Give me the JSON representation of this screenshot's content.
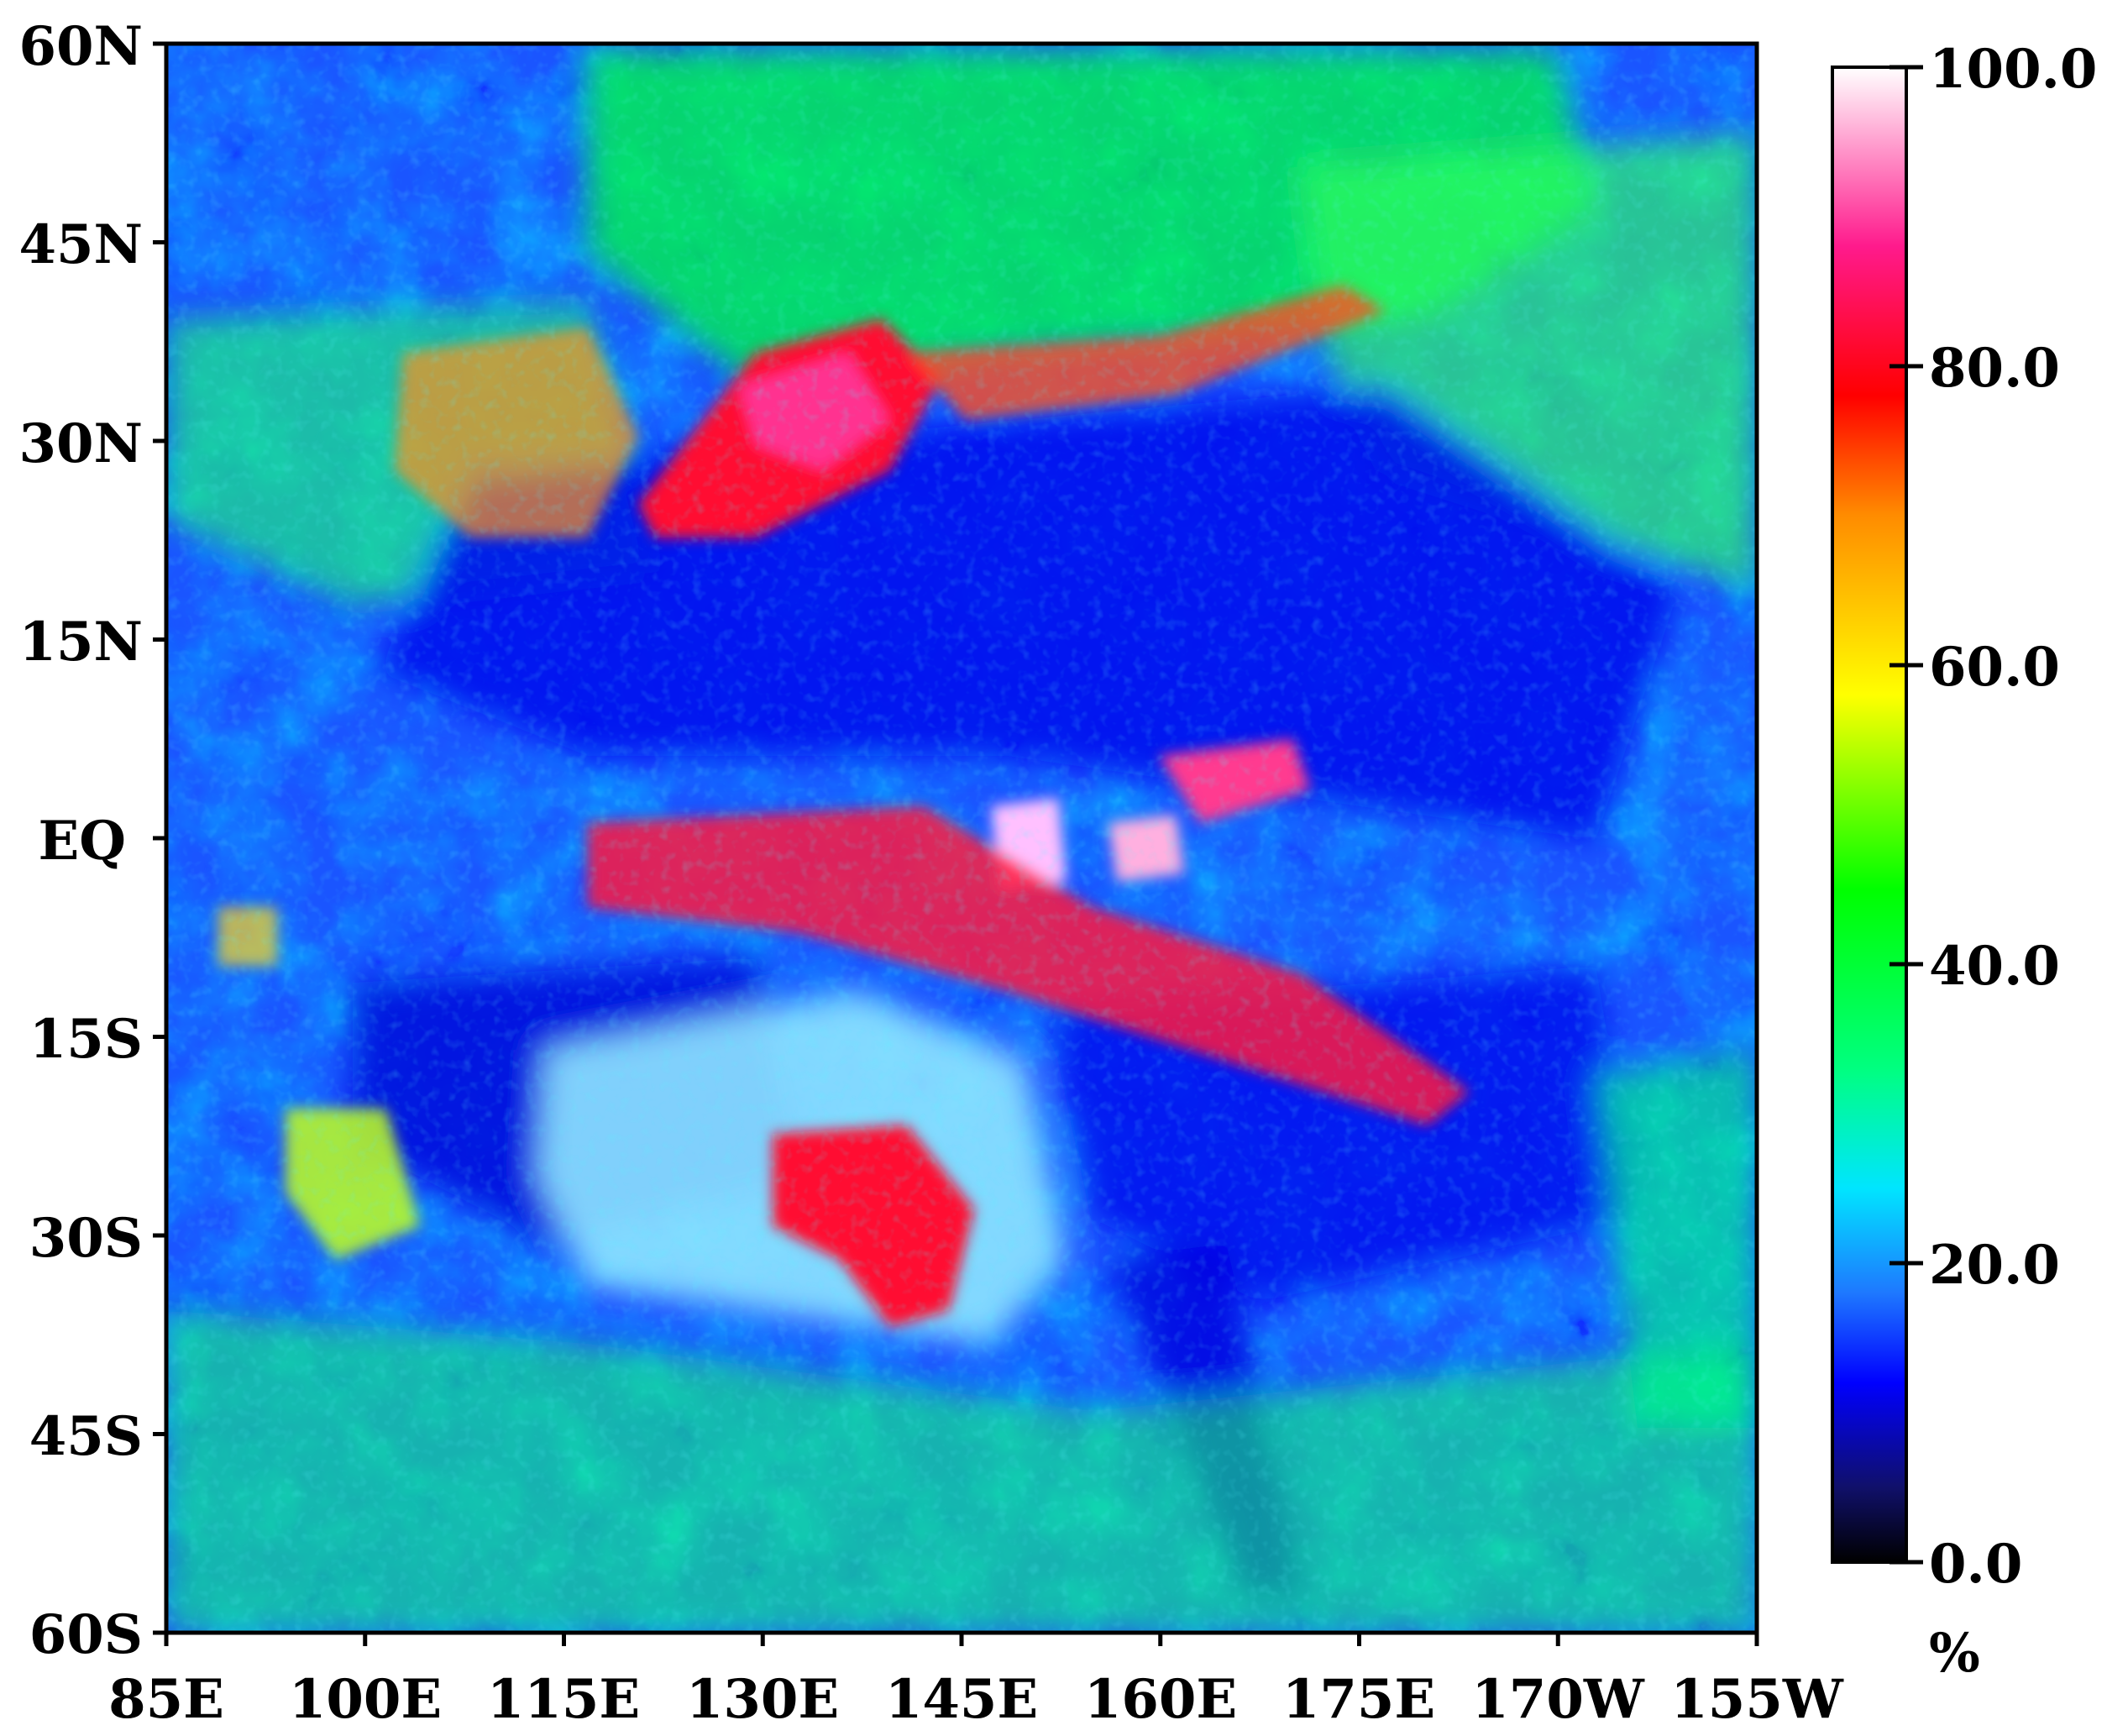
{
  "map": {
    "lat_labels": [
      "60N",
      "45N",
      "30N",
      "15N",
      "EQ",
      "15S",
      "30S",
      "45S",
      "60S"
    ],
    "lon_labels": [
      "85E",
      "100E",
      "115E",
      "130E",
      "145E",
      "160E",
      "175E",
      "170W",
      "155W"
    ]
  },
  "colorbar": {
    "ticks": [
      "100.0",
      "80.0",
      "60.0",
      "40.0",
      "20.0",
      "0.0"
    ],
    "unit": "%",
    "colors": [
      "#000000",
      "#1010c8",
      "#0000ff",
      "#1e90ff",
      "#00ffff",
      "#00ff00",
      "#ffff00",
      "#ff8c00",
      "#ff0000",
      "#ff1493",
      "#ffffff"
    ]
  }
}
